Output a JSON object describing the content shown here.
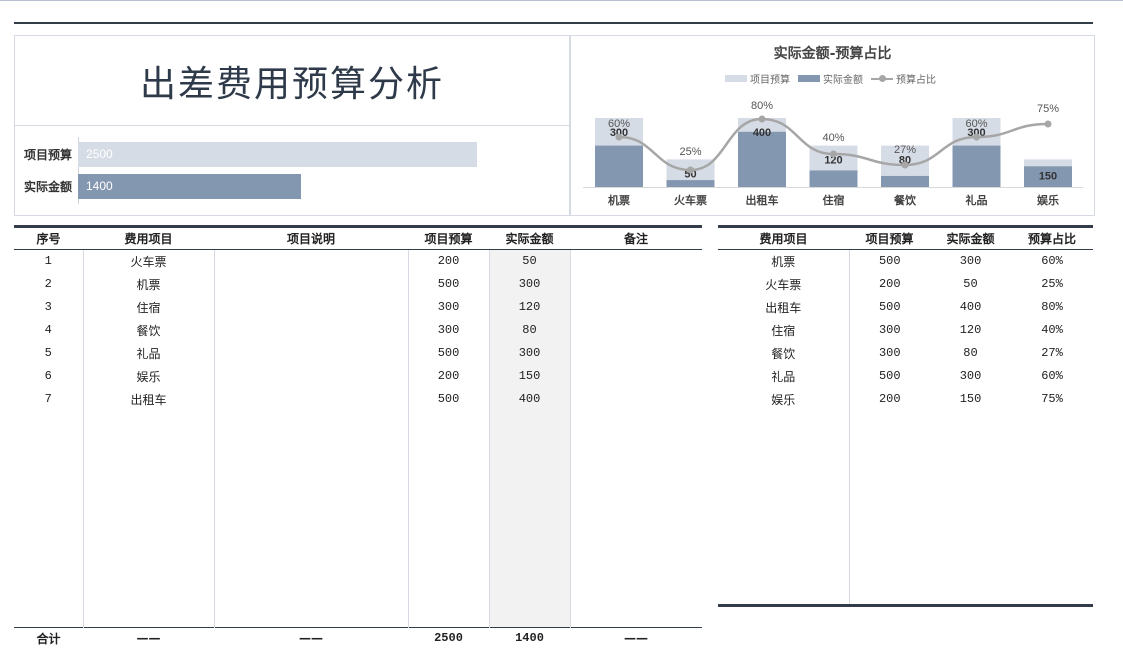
{
  "page": {
    "title": "出差费用预算分析"
  },
  "summary_bars": {
    "items": [
      {
        "label": "项目预算",
        "value": "2500",
        "color": "#d6dce6"
      },
      {
        "label": "实际金额",
        "value": "1400",
        "color": "#8497b0"
      }
    ]
  },
  "chart_data": {
    "type": "bar",
    "title": "实际金额-预算占比",
    "legend": [
      "项目预算",
      "实际金额",
      "预算占比"
    ],
    "categories": [
      "机票",
      "火车票",
      "出租车",
      "住宿",
      "餐饮",
      "礼品",
      "娱乐"
    ],
    "series": [
      {
        "name": "项目预算",
        "type": "bar",
        "values": [
          500,
          200,
          500,
          300,
          300,
          500,
          200
        ],
        "color": "#d6dce6"
      },
      {
        "name": "实际金额",
        "type": "bar",
        "values": [
          300,
          50,
          400,
          120,
          80,
          300,
          150
        ],
        "color": "#8497b0"
      },
      {
        "name": "预算占比",
        "type": "line",
        "values": [
          0.6,
          0.25,
          0.8,
          0.4,
          0.27,
          0.6,
          0.75
        ],
        "labels": [
          "60%",
          "25%",
          "80%",
          "40%",
          "27%",
          "60%",
          "75%"
        ],
        "color": "#a6a6a6"
      }
    ],
    "bar_labels": [
      "300",
      "50",
      "400",
      "120",
      "80",
      "300",
      "150"
    ],
    "legend_position": "top",
    "grid": false
  },
  "main_table": {
    "headers": [
      "序号",
      "费用项目",
      "项目说明",
      "项目预算",
      "实际金额",
      "备注"
    ],
    "rows": [
      [
        "1",
        "火车票",
        "",
        "200",
        "50",
        ""
      ],
      [
        "2",
        "机票",
        "",
        "500",
        "300",
        ""
      ],
      [
        "3",
        "住宿",
        "",
        "300",
        "120",
        ""
      ],
      [
        "4",
        "餐饮",
        "",
        "300",
        "80",
        ""
      ],
      [
        "5",
        "礼品",
        "",
        "500",
        "300",
        ""
      ],
      [
        "6",
        "娱乐",
        "",
        "200",
        "150",
        ""
      ],
      [
        "7",
        "出租车",
        "",
        "500",
        "400",
        ""
      ]
    ],
    "total": [
      "合计",
      "——",
      "——",
      "2500",
      "1400",
      "——"
    ]
  },
  "side_table": {
    "headers": [
      "费用项目",
      "项目预算",
      "实际金额",
      "预算占比"
    ],
    "rows": [
      [
        "机票",
        "500",
        "300",
        "60%"
      ],
      [
        "火车票",
        "200",
        "50",
        "25%"
      ],
      [
        "出租车",
        "500",
        "400",
        "80%"
      ],
      [
        "住宿",
        "300",
        "120",
        "40%"
      ],
      [
        "餐饮",
        "300",
        "80",
        "27%"
      ],
      [
        "礼品",
        "500",
        "300",
        "60%"
      ],
      [
        "娱乐",
        "200",
        "150",
        "75%"
      ]
    ]
  }
}
